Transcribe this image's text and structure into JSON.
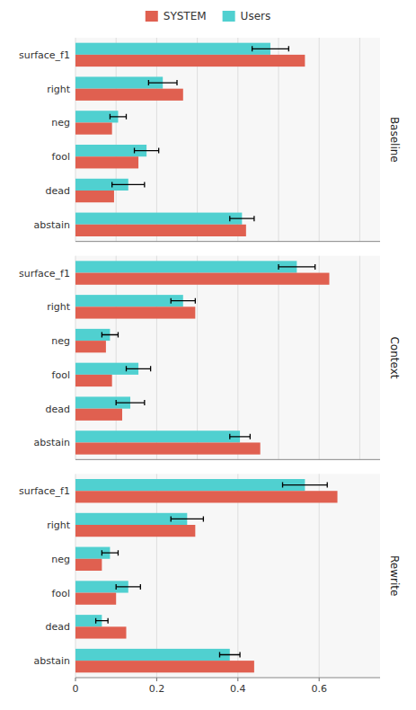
{
  "chart_data": [
    {
      "type": "bar",
      "orientation": "horizontal",
      "title": "Baseline",
      "categories": [
        "surface_f1",
        "right",
        "neg",
        "fool",
        "dead",
        "abstain"
      ],
      "series": [
        {
          "name": "SYSTEM",
          "color": "#E06050",
          "values": [
            0.565,
            0.265,
            0.09,
            0.155,
            0.095,
            0.42
          ]
        },
        {
          "name": "Users",
          "color": "#50D0D0",
          "values": [
            0.48,
            0.215,
            0.105,
            0.175,
            0.13,
            0.41
          ],
          "error": [
            0.045,
            0.035,
            0.02,
            0.03,
            0.04,
            0.03
          ]
        }
      ],
      "xlim": [
        0,
        0.75
      ],
      "xticks": [
        0,
        0.1,
        0.2,
        0.3,
        0.4,
        0.5,
        0.6,
        0.7
      ],
      "grid": true,
      "tick_labels": "y",
      "legend": "top"
    },
    {
      "type": "bar",
      "orientation": "horizontal",
      "title": "Context",
      "categories": [
        "surface_f1",
        "right",
        "neg",
        "fool",
        "dead",
        "abstain"
      ],
      "series": [
        {
          "name": "SYSTEM",
          "color": "#E06050",
          "values": [
            0.625,
            0.295,
            0.075,
            0.09,
            0.115,
            0.455
          ]
        },
        {
          "name": "Users",
          "color": "#50D0D0",
          "values": [
            0.545,
            0.265,
            0.085,
            0.155,
            0.135,
            0.405
          ],
          "error": [
            0.045,
            0.03,
            0.02,
            0.03,
            0.035,
            0.025
          ]
        }
      ],
      "xlim": [
        0,
        0.75
      ],
      "xticks": [
        0,
        0.1,
        0.2,
        0.3,
        0.4,
        0.5,
        0.6,
        0.7
      ],
      "grid": true,
      "tick_labels": "y"
    },
    {
      "type": "bar",
      "orientation": "horizontal",
      "title": "Rewrite",
      "categories": [
        "surface_f1",
        "right",
        "neg",
        "fool",
        "dead",
        "abstain"
      ],
      "series": [
        {
          "name": "SYSTEM",
          "color": "#E06050",
          "values": [
            0.645,
            0.295,
            0.065,
            0.1,
            0.125,
            0.44
          ]
        },
        {
          "name": "Users",
          "color": "#50D0D0",
          "values": [
            0.565,
            0.275,
            0.085,
            0.13,
            0.065,
            0.38
          ],
          "error": [
            0.055,
            0.04,
            0.02,
            0.03,
            0.015,
            0.025
          ]
        }
      ],
      "xlim": [
        0,
        0.75
      ],
      "xticks": [
        0,
        0.2,
        0.4,
        0.6
      ],
      "grid": true
    }
  ]
}
